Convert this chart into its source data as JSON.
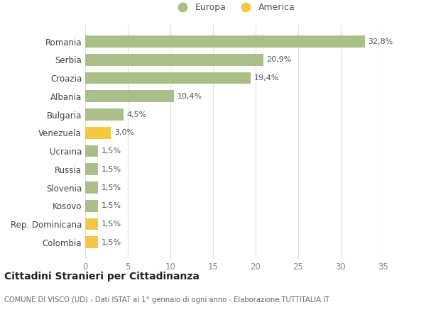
{
  "categories": [
    "Romania",
    "Serbia",
    "Croazia",
    "Albania",
    "Bulgaria",
    "Venezuela",
    "Ucraina",
    "Russia",
    "Slovenia",
    "Kosovo",
    "Rep. Dominicana",
    "Colombia"
  ],
  "values": [
    32.8,
    20.9,
    19.4,
    10.4,
    4.5,
    3.0,
    1.5,
    1.5,
    1.5,
    1.5,
    1.5,
    1.5
  ],
  "labels": [
    "32,8%",
    "20,9%",
    "19,4%",
    "10,4%",
    "4,5%",
    "3,0%",
    "1,5%",
    "1,5%",
    "1,5%",
    "1,5%",
    "1,5%",
    "1,5%"
  ],
  "colors": [
    "#a8bf87",
    "#a8bf87",
    "#a8bf87",
    "#a8bf87",
    "#a8bf87",
    "#f5c842",
    "#a8bf87",
    "#a8bf87",
    "#a8bf87",
    "#a8bf87",
    "#f5c842",
    "#f5c842"
  ],
  "europa_color": "#a8bf87",
  "america_color": "#f5c842",
  "bg_color": "#ffffff",
  "grid_color": "#e0e0e0",
  "title": "Cittadini Stranieri per Cittadinanza",
  "subtitle": "COMUNE DI VISCO (UD) - Dati ISTAT al 1° gennaio di ogni anno - Elaborazione TUTTITALIA.IT",
  "xlim": [
    0,
    35
  ],
  "xticks": [
    0,
    5,
    10,
    15,
    20,
    25,
    30,
    35
  ],
  "legend_europa": "Europa",
  "legend_america": "America"
}
